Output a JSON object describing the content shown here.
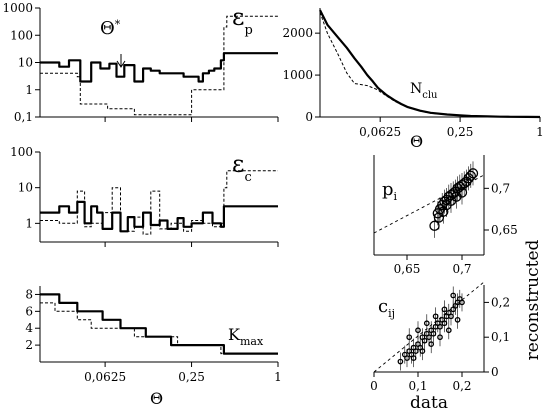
{
  "chart_data": [
    {
      "id": "eps_p",
      "type": "line",
      "ylabel": "ε",
      "ylabel_sub": "p",
      "annotation": "Θ",
      "annotation_sup": "*",
      "yscale": "log",
      "yticks": [
        "0,1",
        "1",
        "10",
        "100",
        "1000"
      ],
      "xscale": "log2",
      "series": [
        {
          "style": "solid",
          "x": [
            0.022,
            0.03,
            0.035,
            0.042,
            0.05,
            0.058,
            0.067,
            0.075,
            0.085,
            0.1,
            0.115,
            0.13,
            0.15,
            0.17,
            0.2,
            0.22,
            0.25,
            0.28,
            0.3,
            0.33,
            0.36,
            0.4,
            0.42,
            0.44,
            1.0
          ],
          "y": [
            10,
            7,
            12,
            2,
            10,
            6,
            9,
            3,
            8,
            2,
            6,
            5,
            4,
            4,
            4,
            3,
            3,
            2,
            4,
            5,
            6,
            12,
            22,
            22,
            22
          ]
        },
        {
          "style": "dashed",
          "x": [
            0.022,
            0.04,
            0.042,
            0.06,
            0.065,
            0.09,
            0.1,
            0.13,
            0.15,
            0.2,
            0.24,
            0.25,
            0.3,
            0.4,
            0.42,
            0.44,
            0.5,
            1.0
          ],
          "y": [
            4,
            3,
            0.3,
            0.3,
            0.2,
            0.2,
            0.12,
            0.12,
            0.12,
            0.12,
            0.12,
            1,
            1,
            1,
            200,
            500,
            500,
            500
          ]
        }
      ]
    },
    {
      "id": "n_clu",
      "type": "line",
      "ylabel": "N",
      "ylabel_sub": "clu",
      "xlabel": "Θ",
      "yticks": [
        "0",
        "1000",
        "2000"
      ],
      "xticks": [
        "0,0625",
        "0,25",
        "1"
      ],
      "ylim": [
        0,
        2600
      ],
      "series": [
        {
          "style": "solid",
          "x": [
            0.022,
            0.025,
            0.03,
            0.035,
            0.04,
            0.045,
            0.05,
            0.055,
            0.06,
            0.0625,
            0.07,
            0.08,
            0.09,
            0.1,
            0.125,
            0.15,
            0.2,
            0.25,
            0.3,
            0.4,
            0.5,
            0.6,
            0.8,
            1.0
          ],
          "y": [
            2550,
            2200,
            1900,
            1650,
            1400,
            1200,
            1000,
            850,
            700,
            650,
            520,
            400,
            310,
            240,
            150,
            100,
            60,
            40,
            25,
            15,
            8,
            5,
            2,
            0
          ]
        },
        {
          "style": "dashed",
          "x": [
            0.022,
            0.025,
            0.03,
            0.035,
            0.04,
            0.05,
            0.06,
            0.0625,
            0.08,
            0.1,
            0.125,
            0.15,
            0.2,
            0.25,
            0.3,
            0.4,
            0.5,
            1.0
          ],
          "y": [
            2500,
            2000,
            1500,
            1050,
            800,
            750,
            650,
            600,
            380,
            230,
            140,
            90,
            55,
            35,
            20,
            10,
            5,
            0
          ]
        }
      ]
    },
    {
      "id": "eps_c",
      "type": "line",
      "ylabel": "ε",
      "ylabel_sub": "c",
      "yscale": "log",
      "yticks": [
        "1",
        "10",
        "100"
      ],
      "series": [
        {
          "style": "solid",
          "x": [
            0.022,
            0.03,
            0.035,
            0.04,
            0.045,
            0.05,
            0.055,
            0.06,
            0.07,
            0.08,
            0.09,
            0.1,
            0.115,
            0.13,
            0.15,
            0.17,
            0.2,
            0.22,
            0.25,
            0.3,
            0.35,
            0.4,
            0.42,
            1.0
          ],
          "y": [
            2,
            3,
            2,
            4,
            1,
            3,
            2,
            0.7,
            2,
            0.6,
            1.5,
            0.8,
            2,
            0.9,
            1.2,
            0.7,
            1.4,
            0.8,
            1,
            2,
            1,
            0.8,
            3,
            3
          ]
        },
        {
          "style": "dashed",
          "x": [
            0.022,
            0.03,
            0.04,
            0.045,
            0.05,
            0.06,
            0.07,
            0.08,
            0.1,
            0.115,
            0.13,
            0.15,
            0.18,
            0.22,
            0.25,
            0.3,
            0.35,
            0.4,
            0.42,
            0.44,
            0.5,
            1.0
          ],
          "y": [
            1.2,
            1,
            8,
            0.8,
            1,
            2,
            10,
            0.6,
            1.5,
            0.5,
            8,
            0.7,
            1,
            0.6,
            1.2,
            1,
            0.8,
            1,
            10,
            30,
            30,
            30
          ]
        }
      ]
    },
    {
      "id": "k_max",
      "type": "line",
      "ylabel": "K",
      "ylabel_sub": "max",
      "xlabel": "Θ",
      "yticks": [
        "2",
        "4",
        "6",
        "8"
      ],
      "xticks": [
        "0,0625",
        "0,25",
        "1"
      ],
      "ylim": [
        0,
        9
      ],
      "series": [
        {
          "style": "solid",
          "x": [
            0.022,
            0.03,
            0.04,
            0.06,
            0.08,
            0.12,
            0.18,
            0.25,
            0.42,
            0.45,
            1.0
          ],
          "y": [
            8,
            7,
            6,
            5,
            4,
            3,
            2,
            2,
            1,
            1,
            1
          ]
        },
        {
          "style": "dashed",
          "x": [
            0.022,
            0.028,
            0.04,
            0.05,
            0.075,
            0.1,
            0.15,
            0.2,
            0.35,
            0.4,
            1.0
          ],
          "y": [
            7,
            6,
            5,
            4,
            4,
            3,
            3,
            2,
            2,
            1,
            1
          ]
        }
      ]
    },
    {
      "id": "p_i",
      "type": "scatter",
      "ylabel": "p",
      "ylabel_sub": "i",
      "xticks": [
        "0,65",
        "0,7"
      ],
      "yticks": [
        "0,65",
        "0,7"
      ],
      "xlim": [
        0.62,
        0.72
      ],
      "ylim": [
        0.62,
        0.74
      ],
      "x": [
        0.675,
        0.678,
        0.68,
        0.682,
        0.684,
        0.686,
        0.688,
        0.69,
        0.692,
        0.694,
        0.696,
        0.698,
        0.7,
        0.702,
        0.704,
        0.706,
        0.708,
        0.71,
        0.686,
        0.69,
        0.695,
        0.7,
        0.683,
        0.679
      ],
      "y": [
        0.655,
        0.67,
        0.675,
        0.68,
        0.684,
        0.686,
        0.69,
        0.692,
        0.694,
        0.696,
        0.7,
        0.702,
        0.704,
        0.706,
        0.708,
        0.712,
        0.715,
        0.718,
        0.68,
        0.685,
        0.69,
        0.695,
        0.672,
        0.665
      ]
    },
    {
      "id": "c_ij",
      "type": "scatter",
      "ylabel": "c",
      "ylabel_sub": "ij",
      "xlabel": "data",
      "side_label": "reconstructed",
      "xticks": [
        "0",
        "0,1",
        "0,2"
      ],
      "yticks": [
        "0",
        "0,1",
        "0,2"
      ],
      "xlim": [
        0,
        0.25
      ],
      "ylim": [
        0,
        0.25
      ],
      "x": [
        0.06,
        0.07,
        0.075,
        0.08,
        0.085,
        0.09,
        0.095,
        0.1,
        0.105,
        0.11,
        0.115,
        0.12,
        0.125,
        0.13,
        0.135,
        0.14,
        0.145,
        0.15,
        0.155,
        0.16,
        0.165,
        0.17,
        0.175,
        0.18,
        0.185,
        0.19,
        0.195,
        0.2,
        0.08,
        0.1,
        0.12,
        0.14,
        0.16,
        0.18,
        0.09,
        0.11,
        0.13,
        0.15,
        0.17,
        0.19
      ],
      "y": [
        0.03,
        0.05,
        0.04,
        0.06,
        0.05,
        0.07,
        0.06,
        0.08,
        0.07,
        0.1,
        0.09,
        0.11,
        0.1,
        0.12,
        0.11,
        0.13,
        0.14,
        0.13,
        0.15,
        0.14,
        0.16,
        0.17,
        0.16,
        0.18,
        0.19,
        0.2,
        0.21,
        0.2,
        0.1,
        0.12,
        0.14,
        0.16,
        0.18,
        0.22,
        0.04,
        0.06,
        0.08,
        0.1,
        0.12,
        0.15
      ]
    }
  ]
}
